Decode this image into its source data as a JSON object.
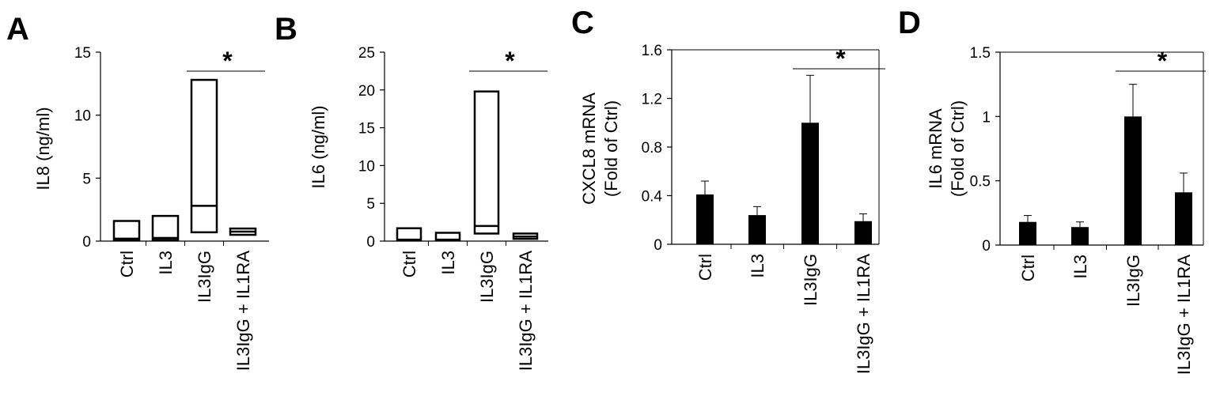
{
  "chart_data": [
    {
      "panel": "A",
      "type": "box",
      "ylabel": "IL8 (ng/ml)",
      "ylim": [
        0,
        15
      ],
      "yticks": [
        "0",
        "5",
        "10",
        "15"
      ],
      "categories": [
        "Ctrl",
        "IL3",
        "IL3IgG",
        "IL3IgG + IL1RA"
      ],
      "boxes": [
        {
          "low": 0.1,
          "median": 0.2,
          "high": 1.6
        },
        {
          "low": 0.1,
          "median": 0.25,
          "high": 2.0
        },
        {
          "low": 0.7,
          "median": 2.8,
          "high": 12.8
        },
        {
          "low": 0.5,
          "median": 0.75,
          "high": 1.0
        }
      ],
      "significance": {
        "from": 2,
        "to": 3,
        "label": "*"
      }
    },
    {
      "panel": "B",
      "type": "box",
      "ylabel": "IL6 (ng/ml)",
      "ylim": [
        0,
        25
      ],
      "yticks": [
        "0",
        "5",
        "10",
        "15",
        "20",
        "25"
      ],
      "categories": [
        "Ctrl",
        "IL3",
        "IL3IgG",
        "IL3IgG + IL1RA"
      ],
      "boxes": [
        {
          "low": 0.1,
          "median": 0.2,
          "high": 1.7
        },
        {
          "low": 0.1,
          "median": 0.2,
          "high": 1.1
        },
        {
          "low": 1.0,
          "median": 2.0,
          "high": 19.8
        },
        {
          "low": 0.3,
          "median": 0.6,
          "high": 1.0
        }
      ],
      "significance": {
        "from": 2,
        "to": 3,
        "label": "*"
      }
    },
    {
      "panel": "C",
      "type": "bar",
      "ylabel": [
        "CXCL8 mRNA",
        "(Fold of Ctrl)"
      ],
      "ylim": [
        0,
        1.6
      ],
      "yticks": [
        "0",
        "0.4",
        "0.8",
        "1.2",
        "1.6"
      ],
      "categories": [
        "Ctrl",
        "IL3",
        "IL3IgG",
        "IL3IgG + IL1RA"
      ],
      "values": [
        0.41,
        0.24,
        1.0,
        0.19
      ],
      "errors": [
        0.11,
        0.07,
        0.39,
        0.06
      ],
      "significance": {
        "from": 2,
        "to": 3,
        "label": "*"
      }
    },
    {
      "panel": "D",
      "type": "bar",
      "ylabel": [
        "IL6 mRNA",
        "(Fold of Ctrl)"
      ],
      "ylim": [
        0,
        1.5
      ],
      "yticks": [
        "0",
        "0.5",
        "1",
        "1.5"
      ],
      "categories": [
        "Ctrl",
        "IL3",
        "IL3IgG",
        "IL3IgG + IL1RA"
      ],
      "values": [
        0.18,
        0.14,
        1.0,
        0.41
      ],
      "errors": [
        0.05,
        0.04,
        0.25,
        0.15
      ],
      "significance": {
        "from": 2,
        "to": 3,
        "label": "*"
      }
    }
  ]
}
